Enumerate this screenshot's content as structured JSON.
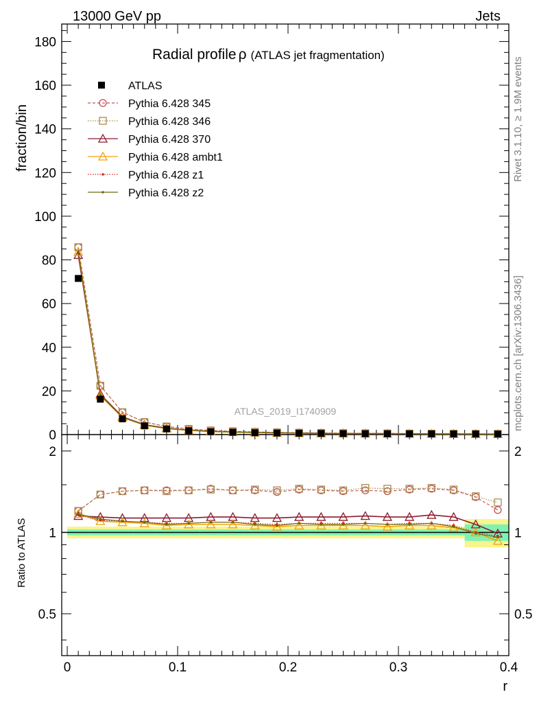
{
  "header": {
    "energy": "13000 GeV pp",
    "process": "Jets"
  },
  "side": {
    "rivet": "Rivet 3.1.10, ≥ 1.9M events",
    "source": "mcplots.cern.ch [arXiv:1306.3436]"
  },
  "chart_data": {
    "type": "line",
    "title": "Radial profile",
    "title_symbol": "ρ",
    "title_sub": "(ATLAS jet fragmentation)",
    "watermark": "ATLAS_2019_I1740909",
    "xlabel": "r",
    "ylabel": "fraction/bin",
    "ratio_ylabel": "Ratio to ATLAS",
    "xlim": [
      -0.005,
      0.4
    ],
    "ylim": [
      0,
      188
    ],
    "ratio_ylim": [
      0.35,
      2.3
    ],
    "x_ticks": [
      "0",
      "0.1",
      "0.2",
      "0.3",
      "0.4"
    ],
    "y_ticks": [
      "0",
      "20",
      "40",
      "60",
      "80",
      "100",
      "120",
      "140",
      "160",
      "180"
    ],
    "ratio_ticks": [
      "0.5",
      "1",
      "2"
    ],
    "x": [
      0.01,
      0.03,
      0.05,
      0.07,
      0.09,
      0.11,
      0.13,
      0.15,
      0.17,
      0.19,
      0.21,
      0.23,
      0.25,
      0.27,
      0.29,
      0.31,
      0.33,
      0.35,
      0.37,
      0.39
    ],
    "data": {
      "name": "ATLAS",
      "values": [
        71.5,
        16.2,
        7.2,
        4.0,
        2.6,
        1.8,
        1.3,
        1.05,
        0.85,
        0.7,
        0.6,
        0.52,
        0.45,
        0.4,
        0.36,
        0.33,
        0.3,
        0.28,
        0.26,
        0.24
      ]
    },
    "series": [
      {
        "name": "Pythia 6.428 345",
        "color": "#c0504d",
        "marker": "circle",
        "dash": "4,3",
        "ratio": [
          1.2,
          1.38,
          1.42,
          1.43,
          1.43,
          1.43,
          1.45,
          1.43,
          1.43,
          1.41,
          1.44,
          1.43,
          1.42,
          1.43,
          1.42,
          1.44,
          1.45,
          1.43,
          1.35,
          1.21
        ]
      },
      {
        "name": "Pythia 6.428 346",
        "color": "#a88a4a",
        "marker": "square",
        "dash": "1.5,2",
        "ratio": [
          1.2,
          1.38,
          1.42,
          1.43,
          1.42,
          1.43,
          1.44,
          1.43,
          1.44,
          1.43,
          1.45,
          1.44,
          1.43,
          1.46,
          1.45,
          1.45,
          1.46,
          1.44,
          1.36,
          1.29
        ]
      },
      {
        "name": "Pythia 6.428 370",
        "color": "#8b1a2f",
        "marker": "triangle",
        "dash": "",
        "ratio": [
          1.15,
          1.14,
          1.13,
          1.13,
          1.13,
          1.13,
          1.14,
          1.14,
          1.13,
          1.13,
          1.14,
          1.14,
          1.14,
          1.15,
          1.14,
          1.14,
          1.16,
          1.14,
          1.07,
          0.99
        ]
      },
      {
        "name": "Pythia 6.428 ambt1",
        "color": "#f2a007",
        "marker": "triangle",
        "dash": "",
        "ratio": [
          1.17,
          1.1,
          1.09,
          1.08,
          1.06,
          1.07,
          1.07,
          1.07,
          1.06,
          1.05,
          1.06,
          1.06,
          1.06,
          1.06,
          1.05,
          1.06,
          1.06,
          1.04,
          1.0,
          0.93
        ]
      },
      {
        "name": "Pythia 6.428 z1",
        "color": "#d42020",
        "marker": "dot",
        "dash": "1.5,2",
        "ratio": [
          1.16,
          1.11,
          1.1,
          1.09,
          1.08,
          1.08,
          1.09,
          1.09,
          1.08,
          1.07,
          1.08,
          1.08,
          1.08,
          1.08,
          1.07,
          1.08,
          1.08,
          1.06,
          1.0,
          0.97
        ]
      },
      {
        "name": "Pythia 6.428 z2",
        "color": "#6b6b12",
        "marker": "dot",
        "dash": "",
        "ratio": [
          1.17,
          1.12,
          1.1,
          1.09,
          1.07,
          1.08,
          1.09,
          1.09,
          1.07,
          1.06,
          1.08,
          1.07,
          1.07,
          1.08,
          1.07,
          1.07,
          1.08,
          1.05,
          0.99,
          0.96
        ]
      }
    ]
  }
}
